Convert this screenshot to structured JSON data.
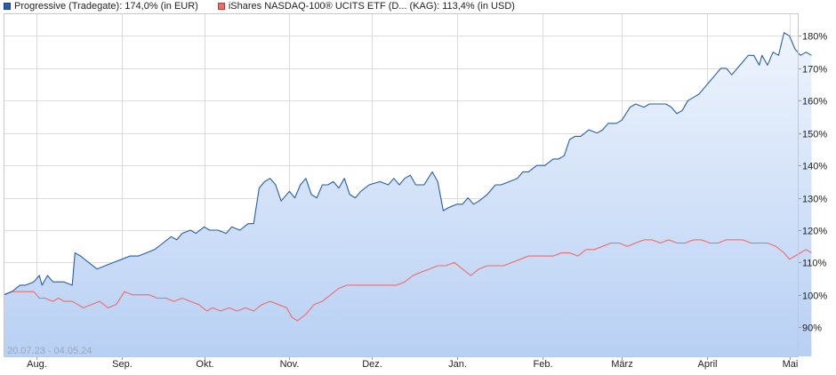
{
  "legend": {
    "series1": "Progressive (Tradegate): 174,0% (in EUR)",
    "series2": "iShares NASDAQ-100® UCITS ETF (D... (KAG): 113,4% (in USD)"
  },
  "date_range": "20.07.23 - 04.05.24",
  "colors": {
    "series1_line": "#2a5da8",
    "series2_line": "#f06a6a",
    "area_top": "#eef4fd",
    "area_bottom": "#b8d0f4",
    "grid": "#dcdcdc"
  },
  "chart_data": {
    "type": "line",
    "x_labels": [
      "Aug.",
      "Sep.",
      "Okt.",
      "Nov.",
      "Dez.",
      "Jan.",
      "Feb.",
      "März",
      "April",
      "Mai"
    ],
    "y_ticks": [
      "90%",
      "100%",
      "110%",
      "120%",
      "130%",
      "140%",
      "150%",
      "160%",
      "170%",
      "180%"
    ],
    "y_tick_values": [
      90,
      100,
      110,
      120,
      130,
      140,
      150,
      160,
      170,
      180
    ],
    "ylim": [
      81,
      187
    ],
    "x_range": [
      "2023-07-20",
      "2024-05-04"
    ],
    "grid": true,
    "legend_position": "top-left",
    "series": [
      {
        "name": "Progressive (Tradegate): 174,0% (in EUR)",
        "filled": true,
        "points": [
          [
            "2023-07-20",
            100
          ],
          [
            "2023-07-23",
            101
          ],
          [
            "2023-07-26",
            103
          ],
          [
            "2023-07-28",
            103
          ],
          [
            "2023-07-31",
            104
          ],
          [
            "2023-08-02",
            106
          ],
          [
            "2023-08-03",
            103
          ],
          [
            "2023-08-05",
            106
          ],
          [
            "2023-08-07",
            104
          ],
          [
            "2023-08-09",
            104
          ],
          [
            "2023-08-11",
            104
          ],
          [
            "2023-08-14",
            103
          ],
          [
            "2023-08-15",
            113
          ],
          [
            "2023-08-17",
            112
          ],
          [
            "2023-08-20",
            110
          ],
          [
            "2023-08-23",
            108
          ],
          [
            "2023-08-26",
            109
          ],
          [
            "2023-08-29",
            110
          ],
          [
            "2023-09-01",
            111
          ],
          [
            "2023-09-04",
            112
          ],
          [
            "2023-09-07",
            112
          ],
          [
            "2023-09-10",
            113
          ],
          [
            "2023-09-13",
            114
          ],
          [
            "2023-09-16",
            116
          ],
          [
            "2023-09-19",
            118
          ],
          [
            "2023-09-21",
            117
          ],
          [
            "2023-09-23",
            119
          ],
          [
            "2023-09-26",
            120
          ],
          [
            "2023-09-28",
            119
          ],
          [
            "2023-10-01",
            121
          ],
          [
            "2023-10-03",
            120
          ],
          [
            "2023-10-06",
            120
          ],
          [
            "2023-10-09",
            119
          ],
          [
            "2023-10-11",
            121
          ],
          [
            "2023-10-14",
            120
          ],
          [
            "2023-10-17",
            122
          ],
          [
            "2023-10-19",
            122
          ],
          [
            "2023-10-21",
            133
          ],
          [
            "2023-10-23",
            135
          ],
          [
            "2023-10-25",
            136
          ],
          [
            "2023-10-27",
            134
          ],
          [
            "2023-10-29",
            129
          ],
          [
            "2023-11-01",
            132
          ],
          [
            "2023-11-03",
            130
          ],
          [
            "2023-11-05",
            134
          ],
          [
            "2023-11-07",
            136
          ],
          [
            "2023-11-09",
            131
          ],
          [
            "2023-11-11",
            130
          ],
          [
            "2023-11-13",
            134
          ],
          [
            "2023-11-15",
            134
          ],
          [
            "2023-11-17",
            135
          ],
          [
            "2023-11-19",
            133
          ],
          [
            "2023-11-21",
            136
          ],
          [
            "2023-11-23",
            131
          ],
          [
            "2023-11-25",
            130
          ],
          [
            "2023-11-27",
            132
          ],
          [
            "2023-11-30",
            134
          ],
          [
            "2023-12-04",
            135
          ],
          [
            "2023-12-07",
            134
          ],
          [
            "2023-12-09",
            136
          ],
          [
            "2023-12-11",
            134
          ],
          [
            "2023-12-13",
            136
          ],
          [
            "2023-12-15",
            137
          ],
          [
            "2023-12-17",
            134
          ],
          [
            "2023-12-20",
            134
          ],
          [
            "2023-12-23",
            138
          ],
          [
            "2023-12-25",
            135
          ],
          [
            "2023-12-27",
            126
          ],
          [
            "2023-12-29",
            127
          ],
          [
            "2024-01-01",
            128
          ],
          [
            "2024-01-03",
            128
          ],
          [
            "2024-01-05",
            130
          ],
          [
            "2024-01-07",
            128
          ],
          [
            "2024-01-09",
            129
          ],
          [
            "2024-01-12",
            131
          ],
          [
            "2024-01-15",
            134
          ],
          [
            "2024-01-17",
            134
          ],
          [
            "2024-01-20",
            135
          ],
          [
            "2024-01-23",
            136
          ],
          [
            "2024-01-25",
            138
          ],
          [
            "2024-01-27",
            138
          ],
          [
            "2024-01-30",
            140
          ],
          [
            "2024-02-02",
            140
          ],
          [
            "2024-02-05",
            142
          ],
          [
            "2024-02-07",
            142
          ],
          [
            "2024-02-09",
            143
          ],
          [
            "2024-02-11",
            148
          ],
          [
            "2024-02-13",
            149
          ],
          [
            "2024-02-15",
            149
          ],
          [
            "2024-02-18",
            151
          ],
          [
            "2024-02-21",
            150
          ],
          [
            "2024-02-23",
            151
          ],
          [
            "2024-02-25",
            153
          ],
          [
            "2024-02-28",
            153
          ],
          [
            "2024-03-01",
            154
          ],
          [
            "2024-03-04",
            158
          ],
          [
            "2024-03-06",
            159
          ],
          [
            "2024-03-09",
            158
          ],
          [
            "2024-03-11",
            159
          ],
          [
            "2024-03-14",
            159
          ],
          [
            "2024-03-17",
            159
          ],
          [
            "2024-03-19",
            158
          ],
          [
            "2024-03-21",
            156
          ],
          [
            "2024-03-23",
            157
          ],
          [
            "2024-03-25",
            160
          ],
          [
            "2024-03-27",
            161
          ],
          [
            "2024-03-29",
            162
          ],
          [
            "2024-03-31",
            164
          ],
          [
            "2024-04-02",
            166
          ],
          [
            "2024-04-04",
            168
          ],
          [
            "2024-04-06",
            170
          ],
          [
            "2024-04-08",
            170
          ],
          [
            "2024-04-10",
            168
          ],
          [
            "2024-04-12",
            170
          ],
          [
            "2024-04-14",
            172
          ],
          [
            "2024-04-16",
            174
          ],
          [
            "2024-04-18",
            174
          ],
          [
            "2024-04-20",
            171
          ],
          [
            "2024-04-21",
            174
          ],
          [
            "2024-04-23",
            171
          ],
          [
            "2024-04-25",
            175
          ],
          [
            "2024-04-27",
            174
          ],
          [
            "2024-04-29",
            181
          ],
          [
            "2024-05-01",
            180
          ],
          [
            "2024-05-03",
            176
          ],
          [
            "2024-05-05",
            174
          ],
          [
            "2024-05-07",
            175
          ],
          [
            "2024-05-09",
            174
          ]
        ]
      },
      {
        "name": "iShares NASDAQ-100® UCITS ETF (D... (KAG): 113,4% (in USD)",
        "filled": false,
        "points": [
          [
            "2023-07-20",
            100
          ],
          [
            "2023-07-23",
            101
          ],
          [
            "2023-07-26",
            101
          ],
          [
            "2023-07-28",
            101
          ],
          [
            "2023-07-31",
            101
          ],
          [
            "2023-08-02",
            99
          ],
          [
            "2023-08-04",
            99
          ],
          [
            "2023-08-07",
            98
          ],
          [
            "2023-08-09",
            99
          ],
          [
            "2023-08-11",
            98
          ],
          [
            "2023-08-14",
            98
          ],
          [
            "2023-08-16",
            97
          ],
          [
            "2023-08-18",
            96
          ],
          [
            "2023-08-21",
            97
          ],
          [
            "2023-08-24",
            98
          ],
          [
            "2023-08-27",
            96
          ],
          [
            "2023-08-30",
            97
          ],
          [
            "2023-09-02",
            101
          ],
          [
            "2023-09-05",
            100
          ],
          [
            "2023-09-08",
            100
          ],
          [
            "2023-09-11",
            100
          ],
          [
            "2023-09-14",
            99
          ],
          [
            "2023-09-17",
            99
          ],
          [
            "2023-09-20",
            98
          ],
          [
            "2023-09-23",
            99
          ],
          [
            "2023-09-26",
            98
          ],
          [
            "2023-09-29",
            97
          ],
          [
            "2023-10-02",
            95
          ],
          [
            "2023-10-04",
            96
          ],
          [
            "2023-10-07",
            95
          ],
          [
            "2023-10-10",
            96
          ],
          [
            "2023-10-13",
            95
          ],
          [
            "2023-10-16",
            96
          ],
          [
            "2023-10-19",
            95
          ],
          [
            "2023-10-22",
            97
          ],
          [
            "2023-10-25",
            98
          ],
          [
            "2023-10-28",
            97
          ],
          [
            "2023-10-31",
            96
          ],
          [
            "2023-11-02",
            93
          ],
          [
            "2023-11-04",
            92
          ],
          [
            "2023-11-07",
            94
          ],
          [
            "2023-11-10",
            97
          ],
          [
            "2023-11-13",
            98
          ],
          [
            "2023-11-16",
            100
          ],
          [
            "2023-11-19",
            102
          ],
          [
            "2023-11-22",
            103
          ],
          [
            "2023-11-25",
            103
          ],
          [
            "2023-11-28",
            103
          ],
          [
            "2023-12-01",
            103
          ],
          [
            "2023-12-04",
            103
          ],
          [
            "2023-12-07",
            103
          ],
          [
            "2023-12-10",
            103
          ],
          [
            "2023-12-13",
            104
          ],
          [
            "2023-12-16",
            106
          ],
          [
            "2023-12-19",
            107
          ],
          [
            "2023-12-22",
            108
          ],
          [
            "2023-12-25",
            109
          ],
          [
            "2023-12-28",
            109
          ],
          [
            "2023-12-31",
            110
          ],
          [
            "2024-01-03",
            108
          ],
          [
            "2024-01-06",
            106
          ],
          [
            "2024-01-09",
            108
          ],
          [
            "2024-01-12",
            109
          ],
          [
            "2024-01-15",
            109
          ],
          [
            "2024-01-18",
            109
          ],
          [
            "2024-01-21",
            110
          ],
          [
            "2024-01-24",
            111
          ],
          [
            "2024-01-27",
            112
          ],
          [
            "2024-01-30",
            112
          ],
          [
            "2024-02-02",
            112
          ],
          [
            "2024-02-05",
            112
          ],
          [
            "2024-02-08",
            113
          ],
          [
            "2024-02-11",
            113
          ],
          [
            "2024-02-14",
            112
          ],
          [
            "2024-02-17",
            114
          ],
          [
            "2024-02-20",
            114
          ],
          [
            "2024-02-23",
            115
          ],
          [
            "2024-02-26",
            116
          ],
          [
            "2024-02-29",
            116
          ],
          [
            "2024-03-03",
            115
          ],
          [
            "2024-03-06",
            116
          ],
          [
            "2024-03-09",
            117
          ],
          [
            "2024-03-12",
            117
          ],
          [
            "2024-03-15",
            116
          ],
          [
            "2024-03-18",
            117
          ],
          [
            "2024-03-21",
            116
          ],
          [
            "2024-03-24",
            116
          ],
          [
            "2024-03-27",
            117
          ],
          [
            "2024-03-30",
            117
          ],
          [
            "2024-04-02",
            116
          ],
          [
            "2024-04-05",
            116
          ],
          [
            "2024-04-08",
            117
          ],
          [
            "2024-04-11",
            117
          ],
          [
            "2024-04-14",
            117
          ],
          [
            "2024-04-17",
            116
          ],
          [
            "2024-04-20",
            116
          ],
          [
            "2024-04-23",
            116
          ],
          [
            "2024-04-26",
            115
          ],
          [
            "2024-04-29",
            113
          ],
          [
            "2024-05-01",
            111
          ],
          [
            "2024-05-03",
            112
          ],
          [
            "2024-05-05",
            113
          ],
          [
            "2024-05-07",
            114
          ],
          [
            "2024-05-09",
            113
          ]
        ]
      }
    ]
  }
}
